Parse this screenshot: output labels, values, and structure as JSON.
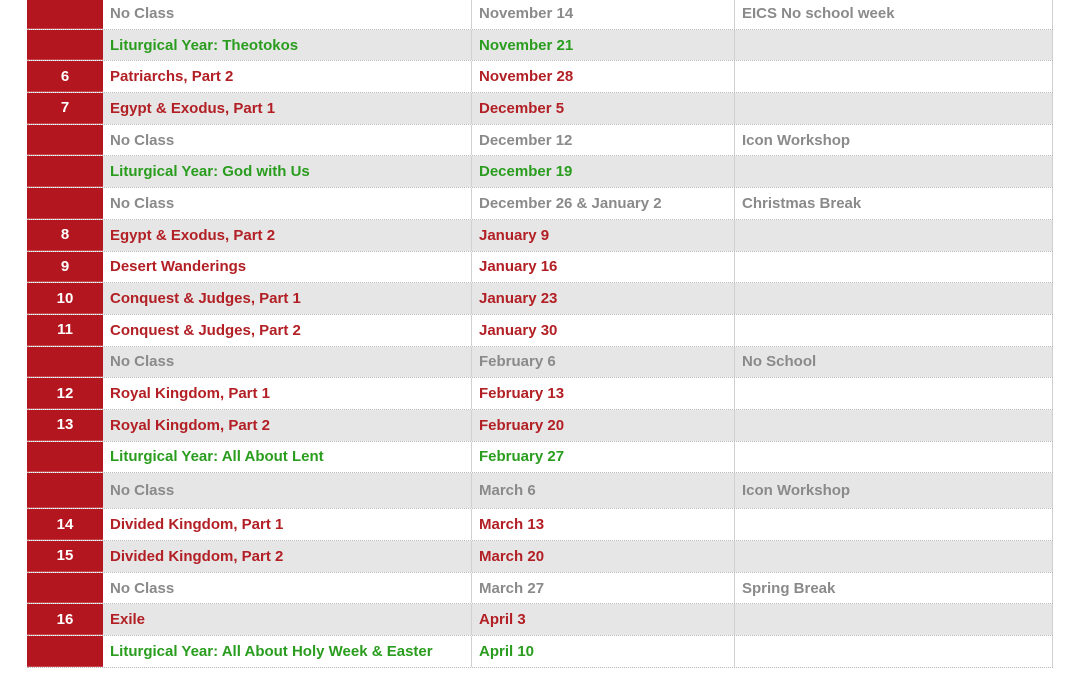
{
  "table": {
    "rows": [
      {
        "number": null,
        "title": "No Class",
        "date": "November 14",
        "note": "EICS No school week",
        "color": "#8a8a8a"
      },
      {
        "number": null,
        "title": "Liturgical Year: Theotokos",
        "date": "November 21",
        "note": null,
        "color": "#2a9d1f"
      },
      {
        "number": "6",
        "title": "Patriarchs, Part 2",
        "date": "November 28",
        "note": null,
        "color": "#b21f24"
      },
      {
        "number": "7",
        "title": "Egypt & Exodus, Part 1",
        "date": "December 5",
        "note": null,
        "color": "#b21f24"
      },
      {
        "number": null,
        "title": "No Class",
        "date": "December 12",
        "note": "Icon Workshop",
        "color": "#8a8a8a"
      },
      {
        "number": null,
        "title": "Liturgical Year: God with Us",
        "date": "December 19",
        "note": null,
        "color": "#2a9d1f"
      },
      {
        "number": null,
        "title": "No Class",
        "date": "December 26 & January 2",
        "note": "Christmas Break",
        "color": "#8a8a8a"
      },
      {
        "number": "8",
        "title": "Egypt & Exodus, Part 2",
        "date": "January 9",
        "note": null,
        "color": "#b21f24"
      },
      {
        "number": "9",
        "title": "Desert Wanderings",
        "date": "January 16",
        "note": null,
        "color": "#b21f24"
      },
      {
        "number": "10",
        "title": "Conquest & Judges, Part 1",
        "date": "January 23",
        "note": null,
        "color": "#b21f24"
      },
      {
        "number": "11",
        "title": "Conquest & Judges, Part 2",
        "date": "January 30",
        "note": null,
        "color": "#b21f24"
      },
      {
        "number": null,
        "title": "No Class",
        "date": "February 6",
        "note": "No School",
        "color": "#8a8a8a"
      },
      {
        "number": "12",
        "title": "Royal Kingdom, Part 1",
        "date": "February 13",
        "note": null,
        "color": "#b21f24"
      },
      {
        "number": "13",
        "title": "Royal Kingdom, Part 2",
        "date": "February 20",
        "note": null,
        "color": "#b21f24"
      },
      {
        "number": null,
        "title": "Liturgical Year: All About Lent",
        "date": "February 27",
        "note": null,
        "color": "#2a9d1f"
      },
      {
        "number": null,
        "title": "No Class",
        "date": "March 6",
        "note": "Icon Workshop",
        "color": "#8a8a8a"
      },
      {
        "number": "14",
        "title": "Divided Kingdom, Part 1",
        "date": "March 13",
        "note": null,
        "color": "#b21f24"
      },
      {
        "number": "15",
        "title": "Divided Kingdom, Part 2",
        "date": "March 20",
        "note": null,
        "color": "#b21f24"
      },
      {
        "number": null,
        "title": "No Class",
        "date": "March 27",
        "note": "Spring Break",
        "color": "#8a8a8a"
      },
      {
        "number": "16",
        "title": "Exile",
        "date": "April 3",
        "note": null,
        "color": "#b21f24"
      },
      {
        "number": null,
        "title": "Liturgical Year: All About Holy Week & Easter",
        "date": "April 10",
        "note": null,
        "color": "#2a9d1f"
      }
    ]
  }
}
